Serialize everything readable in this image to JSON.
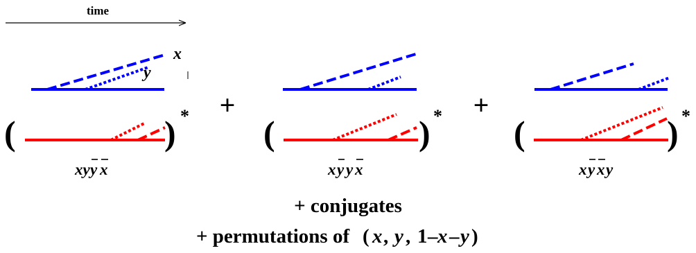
{
  "time_label": "time",
  "operators": {
    "plus": "+",
    "conj": "*"
  },
  "diagrams": [
    {
      "x_label": "x",
      "y_label": "y",
      "caption": {
        "main": "xy",
        "bar1": "y",
        "bar2": "x"
      }
    },
    {
      "caption": {
        "main": "x",
        "bar1": "y",
        "plain": "y",
        "bar2": "x"
      }
    },
    {
      "caption": {
        "main": "x",
        "bar1": "y",
        "bar2": "x",
        "plain": "y"
      }
    }
  ],
  "footer": {
    "line1": "+ conjugates",
    "line2_prefix": "+ permutations of",
    "tuple": {
      "open": "(",
      "x": "x",
      "comma1": ",",
      "y": "y",
      "comma2": ",",
      "one": "1",
      "minus1": "–",
      "x2": "x",
      "minus2": "–",
      "y2": "y",
      "close": ")"
    }
  },
  "colors": {
    "top_line": "#0000ff",
    "bottom_line": "#ff0000",
    "text": "#000000"
  }
}
